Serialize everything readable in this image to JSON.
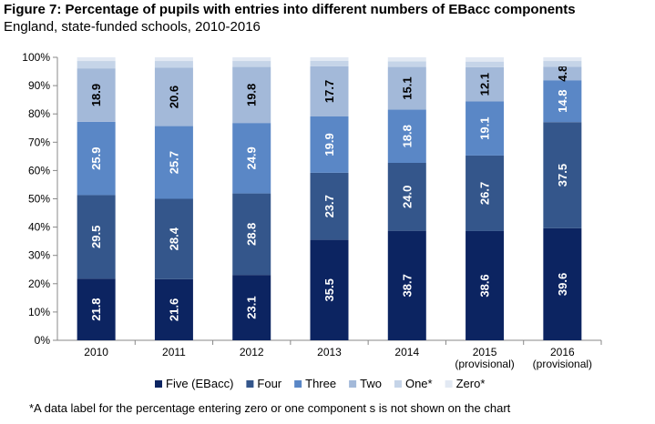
{
  "chart_data": {
    "type": "bar",
    "stacked": true,
    "title": "Figure 7: Percentage of pupils with entries into different numbers of EBacc components",
    "subtitle": "England, state-funded schools, 2010-2016",
    "categories": [
      [
        "2010"
      ],
      [
        "2011"
      ],
      [
        "2012"
      ],
      [
        "2013"
      ],
      [
        "2014"
      ],
      [
        "2015",
        "(provisional)"
      ],
      [
        "2016",
        "(provisional)"
      ]
    ],
    "ylim": [
      0,
      100
    ],
    "yticks": [
      "0%",
      "10%",
      "20%",
      "30%",
      "40%",
      "50%",
      "60%",
      "70%",
      "80%",
      "90%",
      "100%"
    ],
    "series": [
      {
        "name": "Five (EBacc)",
        "color": "#0c2461",
        "labelColor": "#ffffff",
        "values": [
          21.8,
          21.6,
          23.1,
          35.5,
          38.7,
          38.6,
          39.6
        ],
        "labels": [
          "21.8",
          "21.6",
          "23.1",
          "35.5",
          "38.7",
          "38.6",
          "39.6"
        ]
      },
      {
        "name": "Four",
        "color": "#34568b",
        "labelColor": "#ffffff",
        "values": [
          29.5,
          28.4,
          28.8,
          23.7,
          24.0,
          26.7,
          37.5
        ],
        "labels": [
          "29.5",
          "28.4",
          "28.8",
          "23.7",
          "24.0",
          "26.7",
          "37.5"
        ]
      },
      {
        "name": "Three",
        "color": "#5a87c6",
        "labelColor": "#ffffff",
        "values": [
          25.9,
          25.7,
          24.9,
          19.9,
          18.8,
          19.1,
          14.8
        ],
        "labels": [
          "25.9",
          "25.7",
          "24.9",
          "19.9",
          "18.8",
          "19.1",
          "14.8"
        ]
      },
      {
        "name": "Two",
        "color": "#a3b9d9",
        "labelColor": "#000000",
        "values": [
          18.9,
          20.6,
          19.8,
          17.7,
          15.1,
          12.1,
          4.8
        ],
        "labels": [
          "18.9",
          "20.6",
          "19.8",
          "17.7",
          "15.1",
          "12.1",
          "4.8"
        ]
      },
      {
        "name": "One*",
        "color": "#c5d4e8",
        "labelColor": "#000000",
        "values": [
          2.6,
          2.4,
          2.1,
          2.0,
          2.0,
          2.0,
          2.0
        ],
        "labels": [
          "",
          "",
          "",
          "",
          "",
          "",
          ""
        ]
      },
      {
        "name": "Zero*",
        "color": "#e2e9f3",
        "labelColor": "#000000",
        "values": [
          1.3,
          1.3,
          1.3,
          1.2,
          1.4,
          1.5,
          1.3
        ],
        "labels": [
          "",
          "",
          "",
          "",
          "",
          "",
          ""
        ]
      }
    ],
    "legend": "bottom",
    "grid": false
  },
  "footnote": "*A data label for the percentage entering  zero or one component s is not shown on the chart"
}
